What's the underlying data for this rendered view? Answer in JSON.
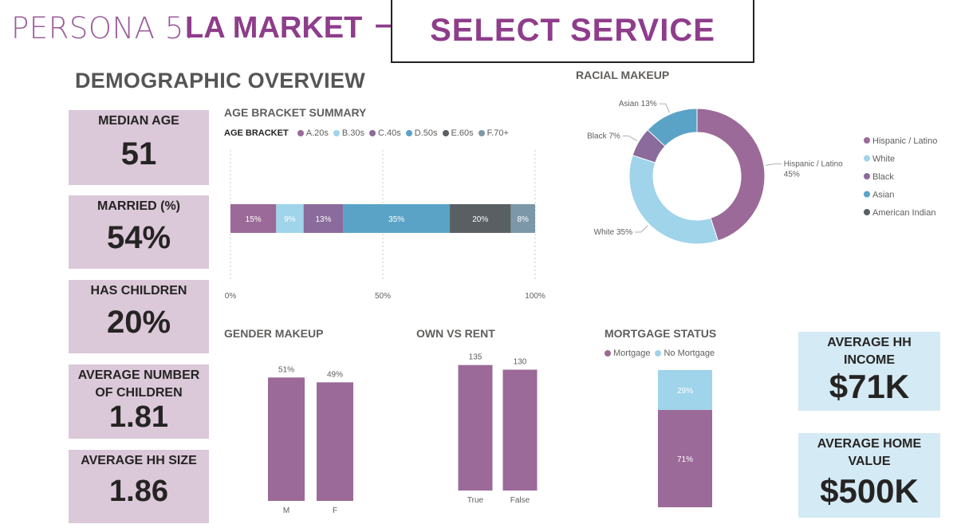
{
  "header": {
    "title_prefix": "PERSONA 5:",
    "title_market": "LA MARKET",
    "title_dash": "–",
    "select_service": "SELECT SERVICE"
  },
  "overview_title": "DEMOGRAPHIC OVERVIEW",
  "kpis_left": [
    {
      "label": "MEDIAN AGE",
      "value": "51"
    },
    {
      "label": "MARRIED (%)",
      "value": "54%"
    },
    {
      "label": "HAS CHILDREN",
      "value": "20%"
    },
    {
      "label": "AVERAGE NUMBER OF CHILDREN",
      "value": "1.81"
    },
    {
      "label": "AVERAGE HH SIZE",
      "value": "1.86"
    }
  ],
  "kpis_right": [
    {
      "label": "AVERAGE HH INCOME",
      "value": "$71K"
    },
    {
      "label": "AVERAGE HOME VALUE",
      "value": "$500K"
    }
  ],
  "colors": {
    "purple": "#9b6a98",
    "light_blue": "#9fd4ea",
    "mauve": "#8a6b9b",
    "blue": "#5aa3c7",
    "dark_gray": "#5a5f63",
    "slate": "#7c98a8",
    "kpi_purple_bg": "#dbc8d9",
    "kpi_blue_bg": "#d4eaf4",
    "title_purple": "#8e3d8b"
  },
  "chart_data": [
    {
      "id": "age",
      "type": "bar",
      "title": "AGE BRACKET SUMMARY",
      "legend_title": "AGE BRACKET",
      "orientation": "horizontal-100%-stacked",
      "series": [
        {
          "name": "A.20s",
          "value": 15,
          "label": "15%",
          "color": "#9b6a98"
        },
        {
          "name": "B.30s",
          "value": 9,
          "label": "9%",
          "color": "#9fd4ea"
        },
        {
          "name": "C.40s",
          "value": 13,
          "label": "13%",
          "color": "#8a6b9b"
        },
        {
          "name": "D.50s",
          "value": 35,
          "label": "35%",
          "color": "#5aa3c7"
        },
        {
          "name": "E.60s",
          "value": 20,
          "label": "20%",
          "color": "#5a5f63"
        },
        {
          "name": "F.70+",
          "value": 8,
          "label": "8%",
          "color": "#7c98a8"
        }
      ],
      "xticks": [
        "0%",
        "50%",
        "100%"
      ],
      "xlim": [
        0,
        100
      ]
    },
    {
      "id": "race",
      "type": "pie",
      "title": "RACIAL MAKEUP",
      "donut": true,
      "slices": [
        {
          "name": "Hispanic / Latino",
          "value": 45,
          "label": "Hispanic / Latino",
          "pct": "45%",
          "color": "#9b6a98"
        },
        {
          "name": "White",
          "value": 35,
          "label": "White 35%",
          "color": "#9fd4ea"
        },
        {
          "name": "Black",
          "value": 7,
          "label": "Black 7%",
          "color": "#8a6b9b"
        },
        {
          "name": "Asian",
          "value": 13,
          "label": "Asian 13%",
          "color": "#5aa3c7"
        },
        {
          "name": "American Indian",
          "value": 0,
          "color": "#5a5f63"
        }
      ]
    },
    {
      "id": "gender",
      "type": "bar",
      "title": "GENDER MAKEUP",
      "categories": [
        "M",
        "F"
      ],
      "values": [
        51,
        49
      ],
      "labels": [
        "51%",
        "49%"
      ],
      "ylim": [
        0,
        60
      ],
      "color": "#9b6a98"
    },
    {
      "id": "own",
      "type": "bar",
      "title": "OWN VS RENT",
      "categories": [
        "True",
        "False"
      ],
      "values": [
        135,
        130
      ],
      "labels": [
        "135",
        "130"
      ],
      "ylim": [
        0,
        145
      ],
      "color": "#9b6a98"
    },
    {
      "id": "mortgage",
      "type": "bar",
      "title": "MORTGAGE STATUS",
      "orientation": "vertical-100%-stacked",
      "series": [
        {
          "name": "Mortgage",
          "value": 71,
          "label": "71%",
          "color": "#9b6a98"
        },
        {
          "name": "No Mortgage",
          "value": 29,
          "label": "29%",
          "color": "#9fd4ea"
        }
      ]
    }
  ]
}
